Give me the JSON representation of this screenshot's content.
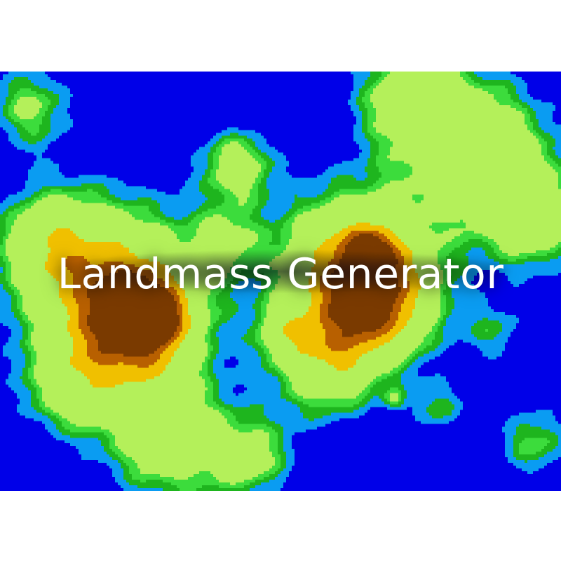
{
  "title": "Landmass Generator",
  "palette": {
    "deep_water": "#0000e8",
    "shallow_water": "#0a9cf2",
    "lowland": "#1eb51e",
    "grass": "#3cdc3c",
    "plains": "#b4f05a",
    "highland": "#f0c000",
    "mountain": "#b86000",
    "peak": "#7a3a00",
    "title_text": "#ffffff",
    "title_glow": "#000020"
  },
  "icons": {
    "map": "terrain-heightmap"
  }
}
